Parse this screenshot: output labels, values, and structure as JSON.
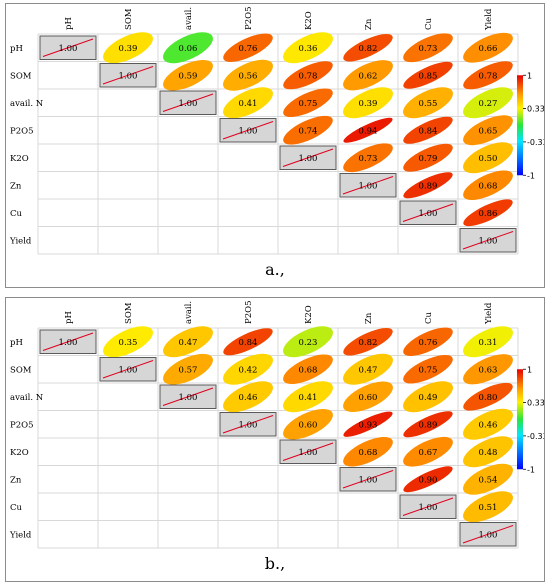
{
  "colors": {
    "diag_fill": "#d6d6d6",
    "grid": "#d9d9d9",
    "diag_line": "#e0001e"
  },
  "chart_data": [
    {
      "type": "heatmap",
      "caption": "a.,",
      "variables": [
        "pH",
        "SOM",
        "avail. N",
        "P2O5",
        "K2O",
        "Zn",
        "Cu",
        "Yield"
      ],
      "upper_triangle": [
        [
          1.0,
          0.39,
          0.06,
          0.76,
          0.36,
          0.82,
          0.73,
          0.66
        ],
        [
          null,
          1.0,
          0.59,
          0.56,
          0.78,
          0.62,
          0.85,
          0.78
        ],
        [
          null,
          null,
          1.0,
          0.41,
          0.75,
          0.39,
          0.55,
          0.27
        ],
        [
          null,
          null,
          null,
          1.0,
          0.74,
          0.94,
          0.84,
          0.65
        ],
        [
          null,
          null,
          null,
          null,
          1.0,
          0.73,
          0.79,
          0.5
        ],
        [
          null,
          null,
          null,
          null,
          null,
          1.0,
          0.89,
          0.68
        ],
        [
          null,
          null,
          null,
          null,
          null,
          null,
          1.0,
          0.86
        ],
        [
          null,
          null,
          null,
          null,
          null,
          null,
          null,
          1.0
        ]
      ],
      "colorbar": {
        "ticks": [
          "1",
          "0.333",
          "-0.333",
          "-1"
        ],
        "range": [
          -1,
          1
        ]
      }
    },
    {
      "type": "heatmap",
      "caption": "b.,",
      "variables": [
        "pH",
        "SOM",
        "avail. N",
        "P2O5",
        "K2O",
        "Zn",
        "Cu",
        "Yield"
      ],
      "upper_triangle": [
        [
          1.0,
          0.35,
          0.47,
          0.84,
          0.23,
          0.82,
          0.76,
          0.31
        ],
        [
          null,
          1.0,
          0.57,
          0.42,
          0.68,
          0.47,
          0.75,
          0.63
        ],
        [
          null,
          null,
          1.0,
          0.46,
          0.41,
          0.6,
          0.49,
          0.8
        ],
        [
          null,
          null,
          null,
          1.0,
          0.6,
          0.93,
          0.89,
          0.46
        ],
        [
          null,
          null,
          null,
          null,
          1.0,
          0.68,
          0.67,
          0.48
        ],
        [
          null,
          null,
          null,
          null,
          null,
          1.0,
          0.9,
          0.54
        ],
        [
          null,
          null,
          null,
          null,
          null,
          null,
          1.0,
          0.51
        ],
        [
          null,
          null,
          null,
          null,
          null,
          null,
          null,
          1.0
        ]
      ],
      "colorbar": {
        "ticks": [
          "1",
          "0.333",
          "-0.333",
          "-1"
        ],
        "range": [
          -1,
          1
        ]
      }
    }
  ]
}
